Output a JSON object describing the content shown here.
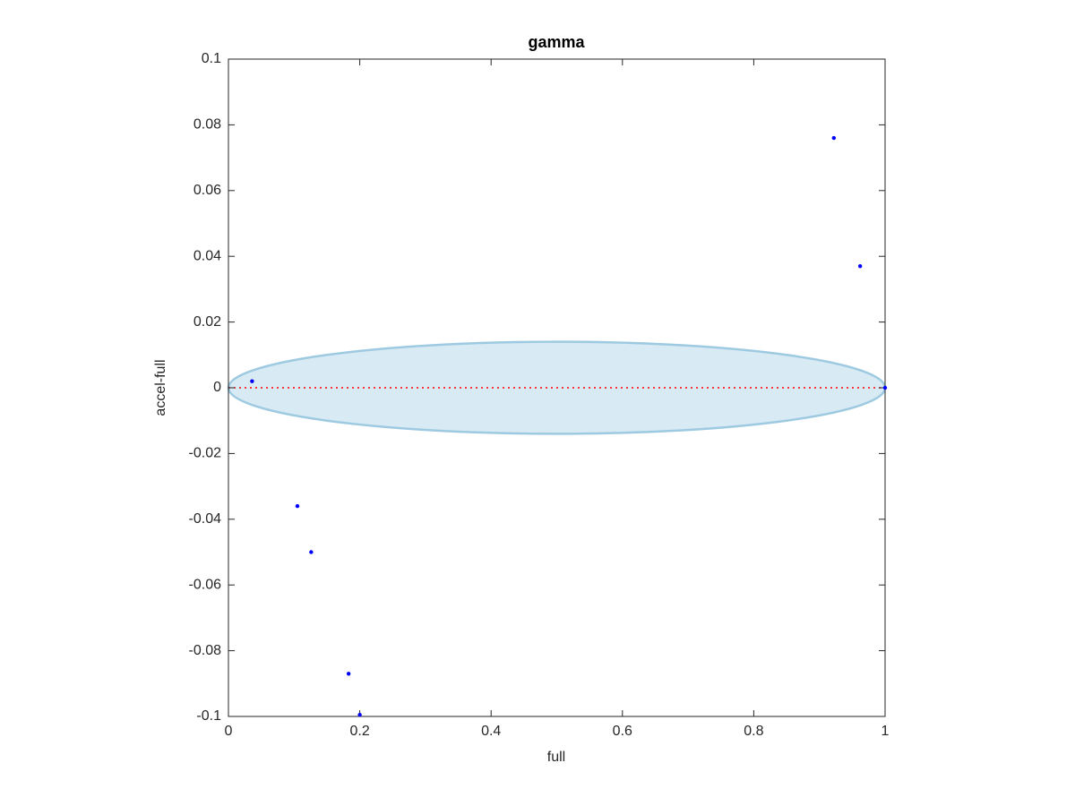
{
  "chart_data": {
    "type": "scatter",
    "title": "gamma",
    "x_label": "full",
    "y_label": "accel-full",
    "series": [
      {
        "color": "#0000ff",
        "x": [
          0.036,
          0.105,
          0.126,
          0.183,
          0.2,
          0.922,
          0.962,
          1.0
        ],
        "values": [
          0.002,
          -0.036,
          -0.05,
          -0.087,
          -0.0995,
          0.076,
          0.037,
          0
        ]
      }
    ],
    "xlim": [
      0,
      1
    ],
    "xticks": [
      0,
      0.2,
      0.4,
      0.6,
      0.8,
      1
    ],
    "ylim": [
      -0.1,
      0.1
    ],
    "yticks": [
      -0.1,
      -0.08,
      -0.06,
      -0.04,
      -0.02,
      0,
      0.02,
      0.04,
      0.06,
      0.08,
      0.1
    ],
    "ellipse": {
      "cx": 0.5,
      "cy": 0,
      "rx": 0.5,
      "ry": 0.014,
      "color": "#9ecae1"
    },
    "reference_line": {
      "y": 0,
      "color": "#ff0000"
    }
  }
}
